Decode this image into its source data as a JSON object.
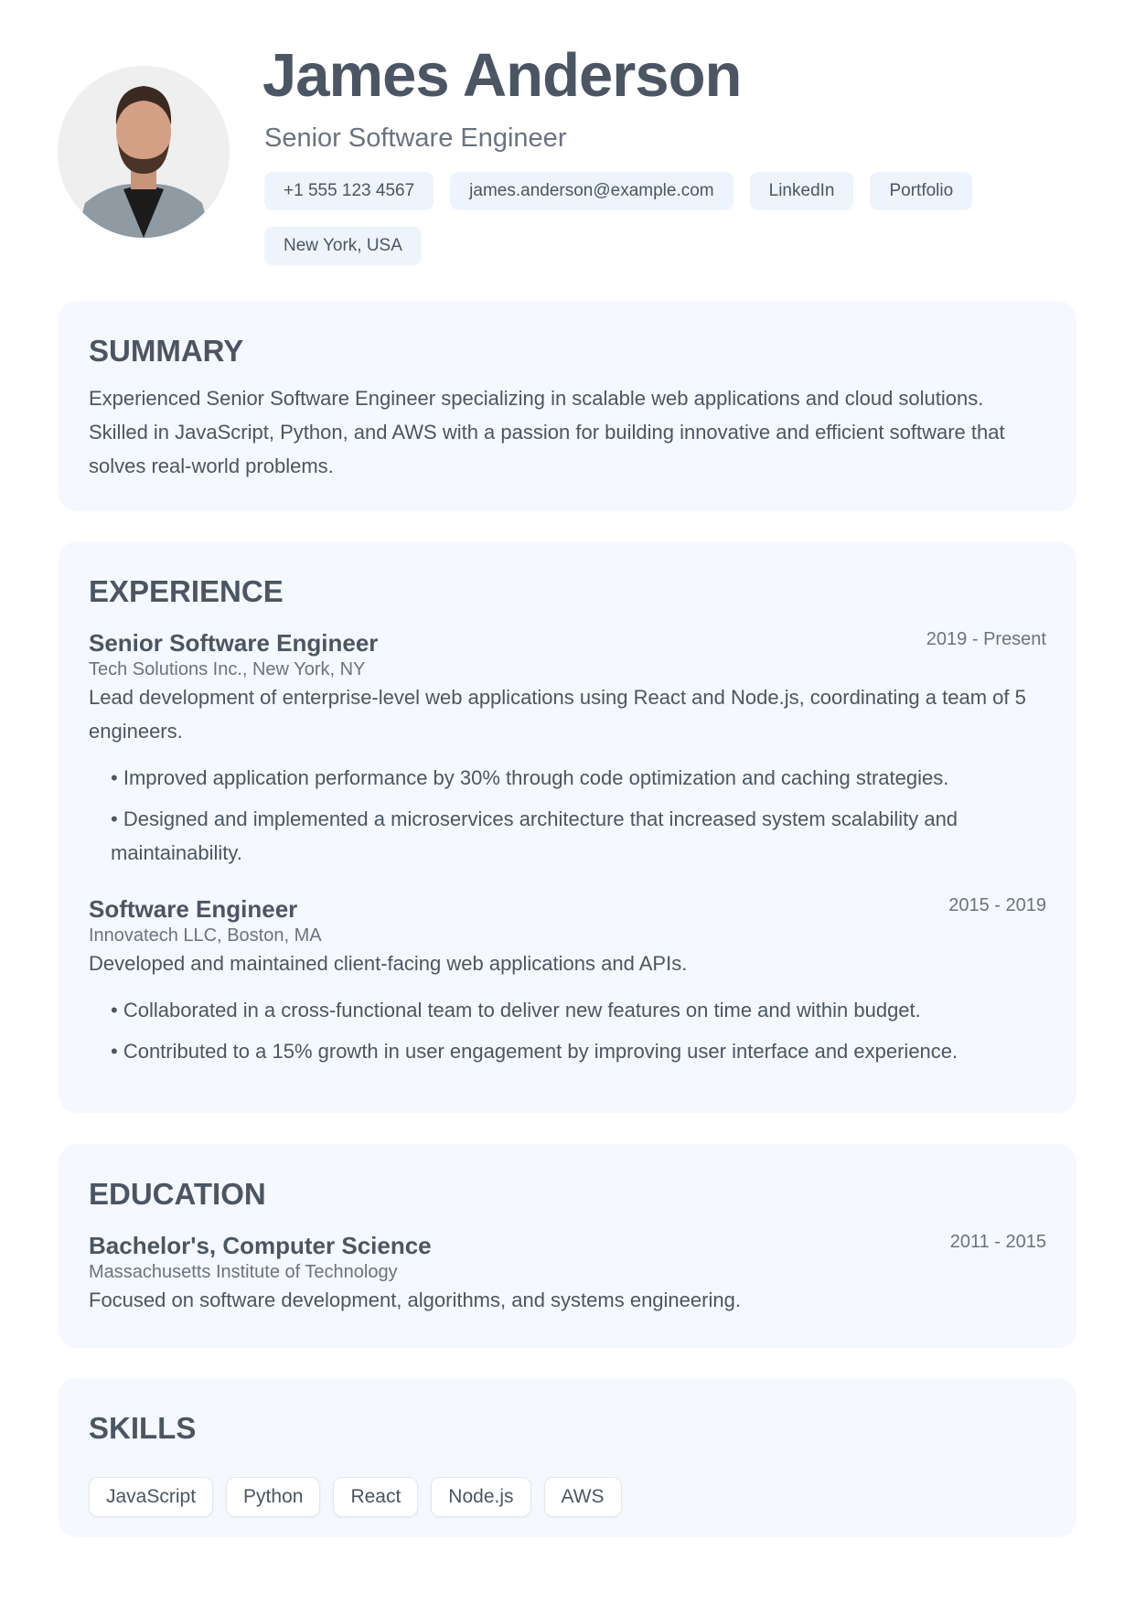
{
  "header": {
    "name": "James Anderson",
    "title": "Senior Software Engineer",
    "contacts": [
      "+1 555 123 4567",
      "james.anderson@example.com",
      "LinkedIn",
      "Portfolio",
      "New York, USA"
    ]
  },
  "summary": {
    "heading": "SUMMARY",
    "text": "Experienced Senior Software Engineer specializing in scalable web applications and cloud solutions. Skilled in JavaScript, Python, and AWS with a passion for building innovative and efficient software that solves real-world problems."
  },
  "experience": {
    "heading": "EXPERIENCE",
    "jobs": [
      {
        "role": "Senior Software Engineer",
        "date": "2019 - Present",
        "org": "Tech Solutions Inc., New York, NY",
        "desc": "Lead development of enterprise-level web applications using React and Node.js, coordinating a team of 5 engineers.",
        "bullets": [
          "Improved application performance by 30% through code optimization and caching strategies.",
          "Designed and implemented a microservices architecture that increased system scalability and maintainability."
        ]
      },
      {
        "role": "Software Engineer",
        "date": "2015 - 2019",
        "org": "Innovatech LLC, Boston, MA",
        "desc": "Developed and maintained client-facing web applications and APIs.",
        "bullets": [
          "Collaborated in a cross-functional team to deliver new features on time and within budget.",
          "Contributed to a 15% growth in user engagement by improving user interface and experience."
        ]
      }
    ]
  },
  "education": {
    "heading": "EDUCATION",
    "degree": "Bachelor's, Computer Science",
    "date": "2011 - 2015",
    "school": "Massachusetts Institute of Technology",
    "desc": "Focused on software development, algorithms, and systems engineering."
  },
  "skills": {
    "heading": "SKILLS",
    "items": [
      "JavaScript",
      "Python",
      "React",
      "Node.js",
      "AWS"
    ]
  }
}
